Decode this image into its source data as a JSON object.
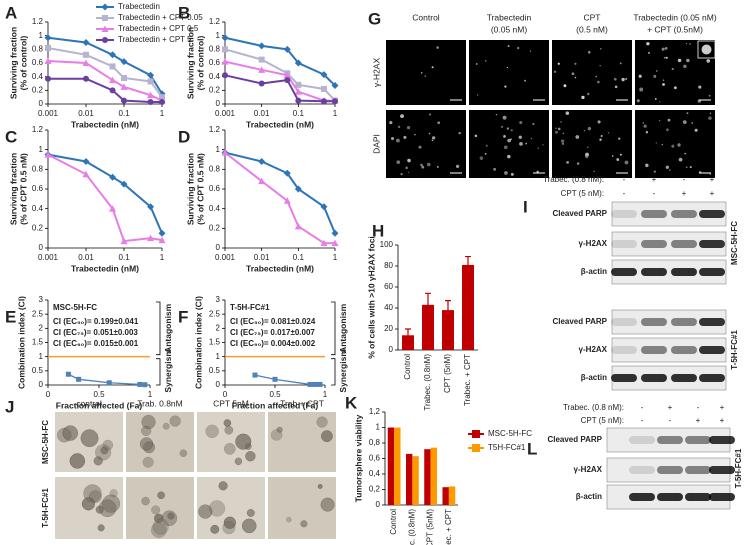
{
  "chart_data": [
    {
      "panel": "A",
      "type": "line",
      "y_label": "Surviving fraction",
      "y_label_2": "(% of control)",
      "x_label": "Trabectedin (nM)",
      "x": [
        0.001,
        0.01,
        0.05,
        0.1,
        0.5,
        1
      ],
      "xlim": [
        0.001,
        1
      ],
      "xlog": true,
      "xticks": [
        0.001,
        0.01,
        0.1,
        1
      ],
      "ylim": [
        0,
        1.2
      ],
      "yticks": [
        0,
        0.2,
        0.4,
        0.6,
        0.8,
        1,
        1.2
      ],
      "legend": "top-right",
      "series": [
        {
          "name": "Trabectedin",
          "color": "#2e75b6",
          "marker": "diamond",
          "values": [
            0.97,
            0.9,
            0.72,
            0.62,
            0.42,
            0.15
          ]
        },
        {
          "name": "Trabectedin + CPT  0.05",
          "color": "#b4b4d0",
          "marker": "square",
          "values": [
            0.82,
            0.72,
            0.55,
            0.38,
            0.33,
            0.1
          ]
        },
        {
          "name": "Trabectedin + CPT 0.5",
          "color": "#e67ee6",
          "marker": "triangle",
          "values": [
            0.63,
            0.6,
            0.35,
            0.25,
            0.13,
            0.05
          ]
        },
        {
          "name": "Trabectedin + CPT 5",
          "color": "#6b3fa0",
          "marker": "circle",
          "values": [
            0.37,
            0.37,
            0.2,
            0.05,
            0.03,
            0.03
          ]
        }
      ]
    },
    {
      "panel": "B",
      "type": "line",
      "y_label": "Surviving fraction",
      "y_label_2": "(% of control)",
      "x_label": "Trabectedin (nM)",
      "x": [
        0.001,
        0.01,
        0.05,
        0.1,
        0.5,
        1
      ],
      "xlim": [
        0.001,
        1
      ],
      "xlog": true,
      "xticks": [
        0.001,
        0.01,
        0.1,
        1
      ],
      "ylim": [
        0,
        1.2
      ],
      "yticks": [
        0,
        0.2,
        0.4,
        0.6,
        0.8,
        1,
        1.2
      ],
      "series": [
        {
          "color": "#2e75b6",
          "marker": "diamond",
          "values": [
            0.97,
            0.85,
            0.8,
            0.6,
            0.43,
            0.27
          ]
        },
        {
          "color": "#b4b4d0",
          "marker": "square",
          "values": [
            0.8,
            0.65,
            0.45,
            0.28,
            0.22,
            0.05
          ]
        },
        {
          "color": "#e67ee6",
          "marker": "triangle",
          "values": [
            0.62,
            0.5,
            0.42,
            0.18,
            0.05,
            0.05
          ]
        },
        {
          "color": "#6b3fa0",
          "marker": "circle",
          "values": [
            0.42,
            0.3,
            0.35,
            0.05,
            0.04,
            0.04
          ]
        }
      ]
    },
    {
      "panel": "C",
      "type": "line",
      "y_label": "Surviving fraction",
      "y_label_2": "(% of CPT 0.5 nM)",
      "x_label": "Trabectedin (nM)",
      "x": [
        0.001,
        0.01,
        0.05,
        0.1,
        0.5,
        1
      ],
      "xlim": [
        0.001,
        1
      ],
      "xlog": true,
      "xticks": [
        0.001,
        0.01,
        0.1,
        1
      ],
      "ylim": [
        0,
        1.2
      ],
      "yticks": [
        0,
        0.2,
        0.4,
        0.6,
        0.8,
        1,
        1.2
      ],
      "series": [
        {
          "color": "#2e75b6",
          "marker": "diamond",
          "values": [
            0.95,
            0.88,
            0.72,
            0.65,
            0.42,
            0.15
          ]
        },
        {
          "color": "#e67ee6",
          "marker": "triangle",
          "values": [
            0.95,
            0.75,
            0.4,
            0.07,
            0.1,
            0.08
          ]
        }
      ]
    },
    {
      "panel": "D",
      "type": "line",
      "y_label": "Surviving fraction",
      "y_label_2": "(% of CPT 0.5 nM)",
      "x_label": "Trabectedin (nM)",
      "x": [
        0.001,
        0.01,
        0.05,
        0.1,
        0.5,
        1
      ],
      "xlim": [
        0.001,
        1
      ],
      "xlog": true,
      "xticks": [
        0.001,
        0.01,
        0.1,
        1
      ],
      "ylim": [
        0,
        1.2
      ],
      "yticks": [
        0,
        0.2,
        0.4,
        0.6,
        0.8,
        1,
        1.2
      ],
      "series": [
        {
          "color": "#2e75b6",
          "marker": "diamond",
          "values": [
            0.97,
            0.88,
            0.76,
            0.6,
            0.42,
            0.15
          ]
        },
        {
          "color": "#e67ee6",
          "marker": "triangle",
          "values": [
            0.97,
            0.68,
            0.48,
            0.22,
            0.05,
            0.05
          ]
        }
      ]
    },
    {
      "panel": "E",
      "type": "scatter",
      "y_label": "Combination index (CI)",
      "x_label": "Fraction affected (Fa)",
      "subtitle": "MSC-5H-FC",
      "annotations": [
        "CI (EC₅₀)= 0.199±0.041",
        "CI (EC₇₅)= 0.051±0.003",
        "CI (EC₉₀)= 0.015±0.001"
      ],
      "upper_label": "Antagonism",
      "lower_label": "Synergism",
      "hline": 1,
      "hline_color": "#f0a030",
      "x": [
        0.2,
        0.3,
        0.6,
        0.9,
        0.95
      ],
      "values": [
        0.38,
        0.2,
        0.08,
        0.02,
        0.01
      ],
      "color": "#4f81bd",
      "xlim": [
        0,
        1
      ],
      "xticks": [
        0,
        0.5,
        1
      ],
      "ylim": [
        0,
        3
      ],
      "yticks": [
        0,
        0.5,
        1,
        1.5,
        2,
        2.5,
        3
      ]
    },
    {
      "panel": "F",
      "type": "scatter",
      "y_label": "Combination index (CI)",
      "x_label": "Fraction affected (Fa)",
      "subtitle": "T-5H-FC#1",
      "annotations": [
        "CI (EC₅₀)= 0.081±0.024",
        "CI (EC₇₅)= 0.017±0.007",
        "CI (EC₉₀)= 0.004±0.002"
      ],
      "upper_label": "Antagonism",
      "lower_label": "Synergism",
      "hline": 1,
      "hline_color": "#f0a030",
      "x": [
        0.3,
        0.5,
        0.85,
        0.9,
        0.95
      ],
      "values": [
        0.35,
        0.2,
        0.02,
        0.02,
        0.02
      ],
      "color": "#4f81bd",
      "xlim": [
        0,
        1
      ],
      "xticks": [
        0,
        0.5,
        1
      ],
      "ylim": [
        0,
        3
      ],
      "yticks": [
        0,
        0.5,
        1,
        1.5,
        2,
        2.5,
        3
      ]
    },
    {
      "panel": "H",
      "type": "bar",
      "y_label": "% of cells with >10 γH2AX foci",
      "categories": [
        "Control",
        "Trabec. (0.8nM)",
        "CPT (5nM)",
        "Trabec. + CPT"
      ],
      "values": [
        14,
        43,
        38,
        81
      ],
      "errors": [
        6,
        11,
        9,
        8
      ],
      "color": "#c00000",
      "ylim": [
        0,
        100
      ],
      "yticks": [
        0,
        20,
        40,
        60,
        80,
        100
      ]
    },
    {
      "panel": "K",
      "type": "grouped_bar",
      "y_label": "Tumorsphere viability",
      "categories": [
        "Control",
        "Trabec. (0.8nM)",
        "CPT (5nM)",
        "Trabec. + CPT"
      ],
      "legend": "right",
      "series": [
        {
          "name": "MSC-5H-FC",
          "color": "#c00000",
          "values": [
            1.0,
            0.66,
            0.72,
            0.23
          ]
        },
        {
          "name": "T5H-FC#1",
          "color": "#ff9900",
          "values": [
            1.0,
            0.63,
            0.74,
            0.24
          ]
        }
      ],
      "ylim": [
        0,
        1.2
      ],
      "yticks": [
        0,
        {
          "value": 0.2,
          "label": "0,2"
        },
        {
          "value": 0.4,
          "label": "0,4"
        },
        {
          "value": 0.6,
          "label": "0,6"
        },
        {
          "value": 0.8,
          "label": "0,8"
        },
        1,
        {
          "value": 1.2,
          "label": "1,2"
        }
      ]
    }
  ],
  "micrographs": {
    "panel": "G",
    "columns": [
      [
        "Control"
      ],
      [
        "Trabectedin",
        "(0.05 nM)"
      ],
      [
        "CPT",
        "(0.5 nM)"
      ],
      [
        "Trabectedin (0.05 nM)",
        "+ CPT (0.5nM)"
      ]
    ],
    "rows": [
      "γ-H2AX",
      "DAPI"
    ]
  },
  "blot_I": {
    "panel": "I",
    "treatments": [
      {
        "label": "Trabec. (0.8 nM):",
        "signs": [
          "-",
          "+",
          "-",
          "+"
        ]
      },
      {
        "label": "CPT (5 nM):",
        "signs": [
          "-",
          "-",
          "+",
          "+"
        ]
      }
    ],
    "groups": [
      {
        "cell_line": "MSC-5H-FC",
        "bands": [
          "Cleaved PARP",
          "γ-H2AX",
          "β-actin"
        ]
      },
      {
        "cell_line": "T-5H-FC#1",
        "bands": [
          "Cleaved PARP",
          "γ-H2AX",
          "β-actin"
        ]
      }
    ]
  },
  "spheres_J": {
    "panel": "J",
    "columns": [
      "control",
      "Trab. 0.8nM",
      "CPT  5nM",
      "Trab + CPT"
    ],
    "rows": [
      "MSC-5H-FC",
      "T-5H-FC#1"
    ]
  },
  "blot_L": {
    "panel": "L",
    "treatments": [
      {
        "label": "Trabec. (0.8 nM):",
        "signs": [
          "-",
          "+",
          "-",
          "+"
        ]
      },
      {
        "label": "CPT (5 nM):",
        "signs": [
          "-",
          "-",
          "+",
          "+"
        ]
      }
    ],
    "groups": [
      {
        "cell_line": "T-5H-FC#1",
        "bands": [
          "Cleaved PARP",
          "γ-H2AX",
          "β-actin"
        ]
      }
    ]
  }
}
